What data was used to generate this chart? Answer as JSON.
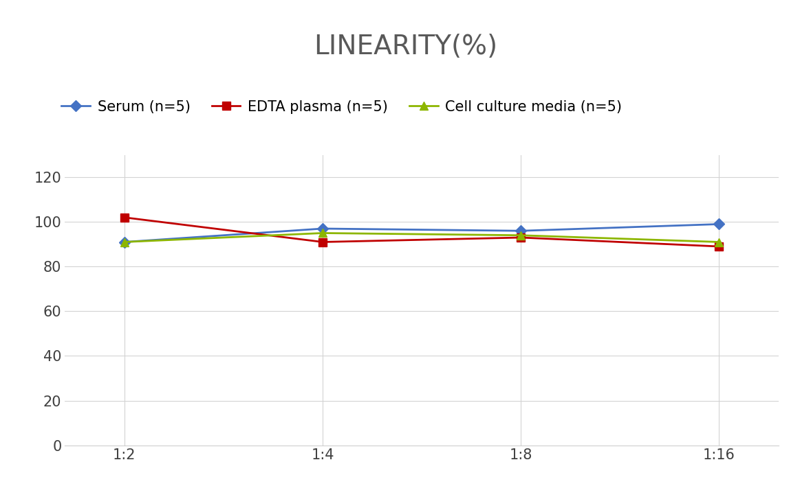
{
  "title": "LINEARITY(%)",
  "x_labels": [
    "1:2",
    "1:4",
    "1:8",
    "1:16"
  ],
  "x_positions": [
    0,
    1,
    2,
    3
  ],
  "serum": [
    91,
    97,
    96,
    99
  ],
  "edta": [
    102,
    91,
    93,
    89
  ],
  "cell_culture": [
    91,
    95,
    94,
    91
  ],
  "serum_color": "#4472C4",
  "edta_color": "#C00000",
  "cell_culture_color": "#8DB600",
  "title_color": "#595959",
  "ylim": [
    0,
    130
  ],
  "yticks": [
    0,
    20,
    40,
    60,
    80,
    100,
    120
  ],
  "legend_labels": [
    "Serum (n=5)",
    "EDTA plasma (n=5)",
    "Cell culture media (n=5)"
  ],
  "title_fontsize": 28,
  "axis_fontsize": 15,
  "legend_fontsize": 15,
  "linewidth": 2.0,
  "markersize": 8
}
